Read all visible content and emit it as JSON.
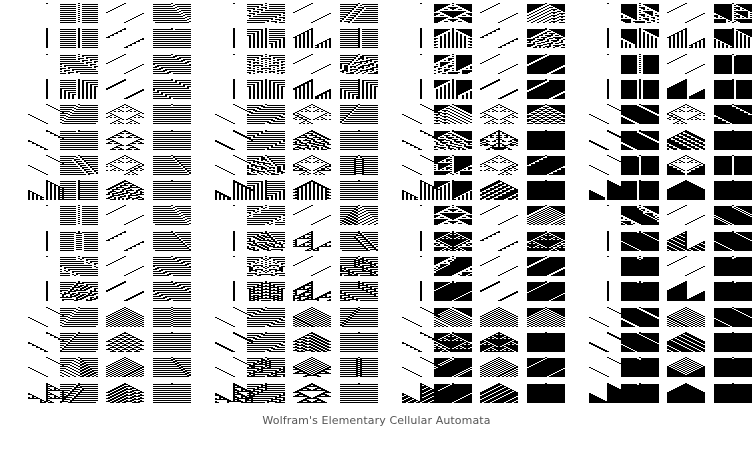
{
  "figure": {
    "caption": "Wolfram's Elementary Cellular Automata",
    "rules_rendered": 256,
    "ink_color": "#000000",
    "paper_color": "#ffffff",
    "caption_color": "#555555"
  }
}
